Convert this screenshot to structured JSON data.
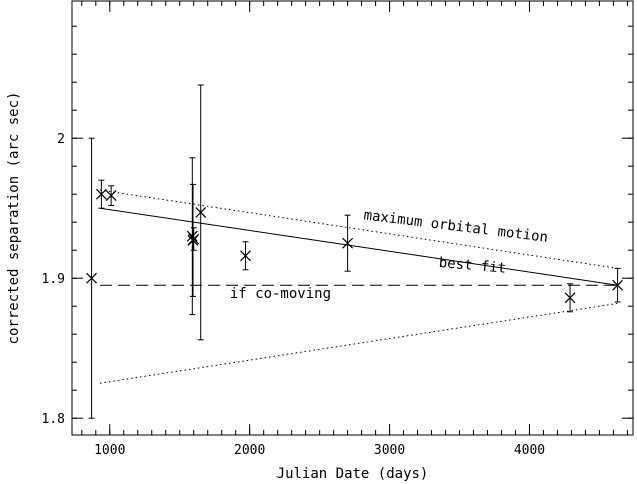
{
  "chart_data": {
    "type": "scatter",
    "xlabel": "Julian Date (days)",
    "ylabel": "corrected separation (arc sec)",
    "xlim": [
      730,
      4740
    ],
    "ylim": [
      1.788,
      2.098
    ],
    "x_ticks": [
      {
        "value": 1000,
        "label": "1000"
      },
      {
        "value": 2000,
        "label": "2000"
      },
      {
        "value": 3000,
        "label": "3000"
      },
      {
        "value": 4000,
        "label": "4000"
      }
    ],
    "y_ticks": [
      {
        "value": 1.8,
        "label": "1.8"
      },
      {
        "value": 1.9,
        "label": "1.9"
      },
      {
        "value": 2.0,
        "label": "2"
      }
    ],
    "x_minor_step": 100,
    "y_minor_step": 0.02,
    "points": [
      {
        "x": 870,
        "y": 1.9,
        "err": 0.1
      },
      {
        "x": 940,
        "y": 1.96,
        "err": 0.01
      },
      {
        "x": 1010,
        "y": 1.959,
        "err": 0.007
      },
      {
        "x": 1590,
        "y": 1.93,
        "err": 0.056
      },
      {
        "x": 1595,
        "y": 1.927,
        "err": 0.04
      },
      {
        "x": 1600,
        "y": 1.928,
        "err": 0.008
      },
      {
        "x": 1650,
        "y": 1.947,
        "err": 0.091
      },
      {
        "x": 1970,
        "y": 1.916,
        "err": 0.01
      },
      {
        "x": 2700,
        "y": 1.925,
        "err": 0.02
      },
      {
        "x": 4290,
        "y": 1.886,
        "err": 0.01
      },
      {
        "x": 4630,
        "y": 1.895,
        "err": 0.012
      }
    ],
    "lines": [
      {
        "name": "maximum orbital motion",
        "style": "dotted",
        "x": [
          930,
          4630
        ],
        "y": [
          1.963,
          1.907
        ]
      },
      {
        "name": "best fit",
        "style": "solid",
        "x": [
          930,
          4630
        ],
        "y": [
          1.95,
          1.895
        ]
      },
      {
        "name": "if co-moving",
        "style": "dashed",
        "x": [
          930,
          4630
        ],
        "y": [
          1.895,
          1.895
        ]
      },
      {
        "name": "lower bound",
        "style": "dotted",
        "x": [
          930,
          4630
        ],
        "y": [
          1.825,
          1.882
        ]
      }
    ],
    "annotations": [
      {
        "text": "maximum orbital motion",
        "x": 3470,
        "y": 1.934,
        "rotate": 7
      },
      {
        "text": "best fit",
        "x": 3590,
        "y": 1.906,
        "rotate": 5
      },
      {
        "text": "if co-moving",
        "x": 2220,
        "y": 1.886,
        "rotate": 0
      }
    ]
  }
}
